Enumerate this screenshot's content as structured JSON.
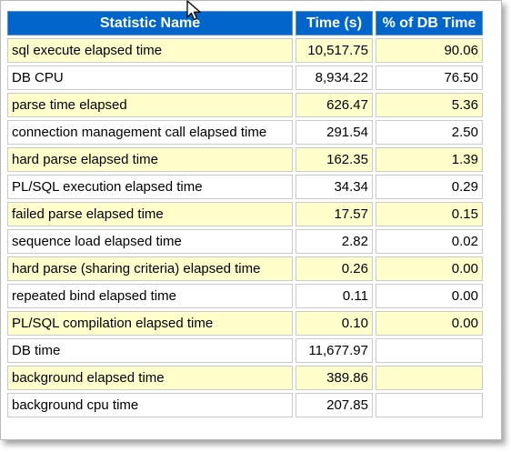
{
  "table": {
    "headers": [
      "Statistic Name",
      "Time (s)",
      "% of DB Time"
    ],
    "rows": [
      {
        "name": "sql execute elapsed time",
        "time": "10,517.75",
        "pct": "90.06"
      },
      {
        "name": "DB CPU",
        "time": "8,934.22",
        "pct": "76.50"
      },
      {
        "name": "parse time elapsed",
        "time": "626.47",
        "pct": "5.36"
      },
      {
        "name": "connection management call elapsed time",
        "time": "291.54",
        "pct": "2.50"
      },
      {
        "name": "hard parse elapsed time",
        "time": "162.35",
        "pct": "1.39"
      },
      {
        "name": "PL/SQL execution elapsed time",
        "time": "34.34",
        "pct": "0.29"
      },
      {
        "name": "failed parse elapsed time",
        "time": "17.57",
        "pct": "0.15"
      },
      {
        "name": "sequence load elapsed time",
        "time": "2.82",
        "pct": "0.02"
      },
      {
        "name": "hard parse (sharing criteria) elapsed time",
        "time": "0.26",
        "pct": "0.00"
      },
      {
        "name": "repeated bind elapsed time",
        "time": "0.11",
        "pct": "0.00"
      },
      {
        "name": "PL/SQL compilation elapsed time",
        "time": "0.10",
        "pct": "0.00"
      },
      {
        "name": "DB time",
        "time": "11,677.97",
        "pct": ""
      },
      {
        "name": "background elapsed time",
        "time": "389.86",
        "pct": ""
      },
      {
        "name": "background cpu time",
        "time": "207.85",
        "pct": ""
      }
    ]
  },
  "colors": {
    "header_bg": "#0066cc",
    "header_text": "#ffffff",
    "alt_row_bg": "#ffffcc",
    "plain_row_bg": "#ffffff"
  },
  "icons": {
    "cursor": "mouse-pointer-icon"
  }
}
